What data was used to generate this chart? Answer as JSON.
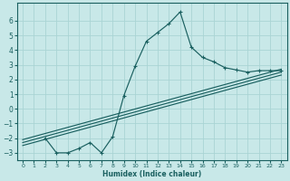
{
  "xlabel": "Humidex (Indice chaleur)",
  "bg_color": "#c8e8e8",
  "grid_color": "#aad4d4",
  "line_color": "#1a6060",
  "xlim": [
    -0.5,
    23.5
  ],
  "ylim": [
    -3.5,
    7.2
  ],
  "xticks": [
    0,
    1,
    2,
    3,
    4,
    5,
    6,
    7,
    8,
    9,
    10,
    11,
    12,
    13,
    14,
    15,
    16,
    17,
    18,
    19,
    20,
    21,
    22,
    23
  ],
  "yticks": [
    -3,
    -2,
    -1,
    0,
    1,
    2,
    3,
    4,
    5,
    6
  ],
  "curve1_x": [
    2,
    3,
    4,
    5,
    6,
    7,
    8,
    9,
    10,
    11,
    12,
    13,
    14,
    15,
    16,
    17,
    18,
    19,
    20,
    21,
    22,
    23
  ],
  "curve1_y": [
    -2.0,
    -3.0,
    -3.0,
    -2.7,
    -2.3,
    -3.0,
    -1.9,
    0.9,
    2.9,
    4.6,
    5.2,
    5.8,
    6.6,
    4.2,
    3.5,
    3.2,
    2.8,
    2.65,
    2.5,
    2.6,
    2.6,
    2.6
  ],
  "line2_x": [
    0,
    23
  ],
  "line2_y": [
    -2.5,
    2.3
  ],
  "line3_x": [
    0,
    23
  ],
  "line3_y": [
    -2.3,
    2.5
  ],
  "line4_x": [
    0,
    23
  ],
  "line4_y": [
    -2.1,
    2.7
  ]
}
